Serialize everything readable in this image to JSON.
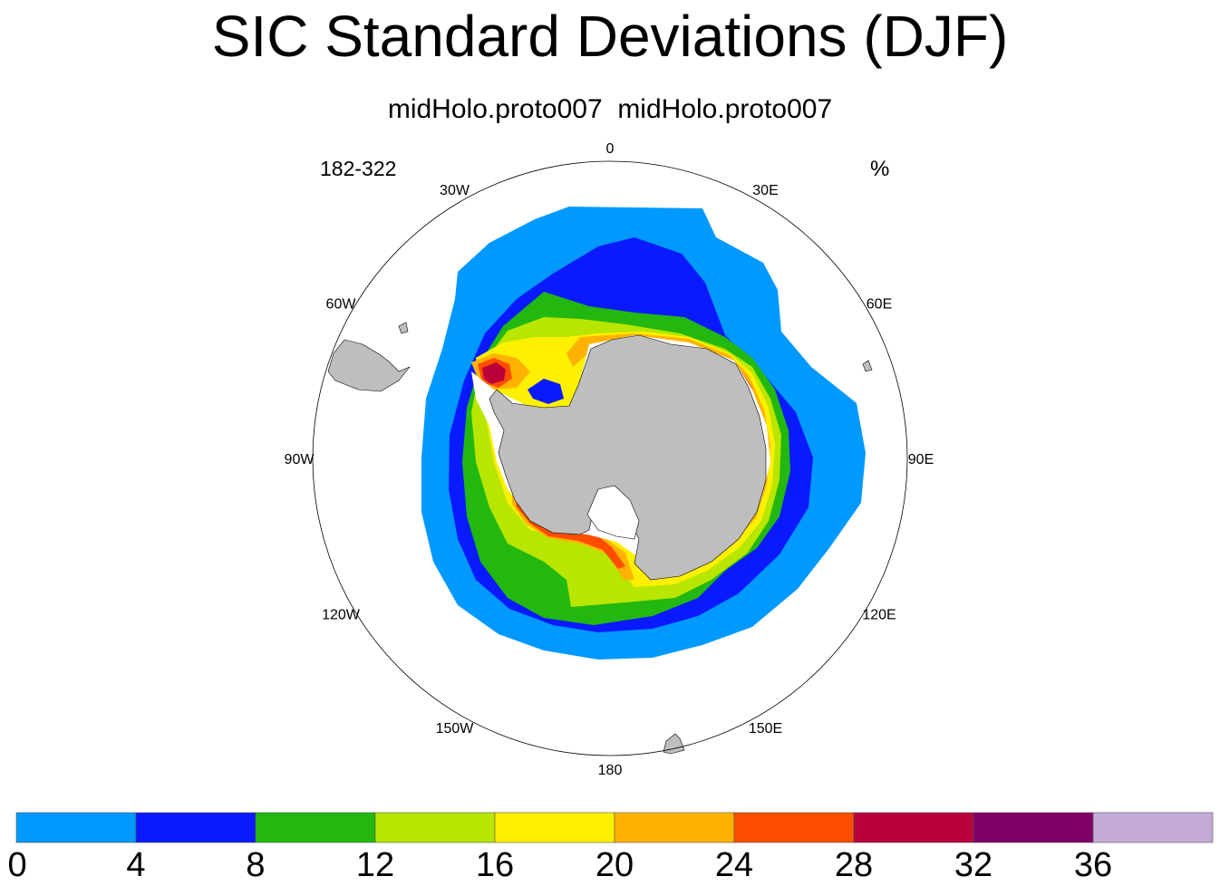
{
  "title": "SIC Standard Deviations (DJF)",
  "subtitle": "midHolo.proto007  midHolo.proto007",
  "left_label": "182-322",
  "right_label": "%",
  "longitude_labels": [
    "0",
    "30E",
    "60E",
    "90E",
    "120E",
    "150E",
    "180",
    "150W",
    "120W",
    "90W",
    "60W",
    "30W"
  ],
  "map_colors": {
    "land": "#bebebe",
    "ocean_background": "#ffffff",
    "boundary": "#000000"
  },
  "colorbar": {
    "levels": [
      "0",
      "4",
      "8",
      "12",
      "16",
      "20",
      "24",
      "28",
      "32",
      "36"
    ],
    "colors": [
      "#0099ff",
      "#0a1aff",
      "#22b80f",
      "#b8e600",
      "#fff000",
      "#ffb300",
      "#ff4d00",
      "#b8003a",
      "#800068",
      "#c4aad6"
    ]
  },
  "chart_data": {
    "type": "heatmap",
    "projection": "south polar stereographic",
    "variable": "SIC standard deviation",
    "season": "DJF",
    "units": "%",
    "contour_levels": [
      0,
      4,
      8,
      12,
      16,
      20,
      24,
      28,
      32,
      36
    ],
    "title": "SIC Standard Deviations (DJF)",
    "subtitle": "midHolo.proto007  midHolo.proto007"
  }
}
